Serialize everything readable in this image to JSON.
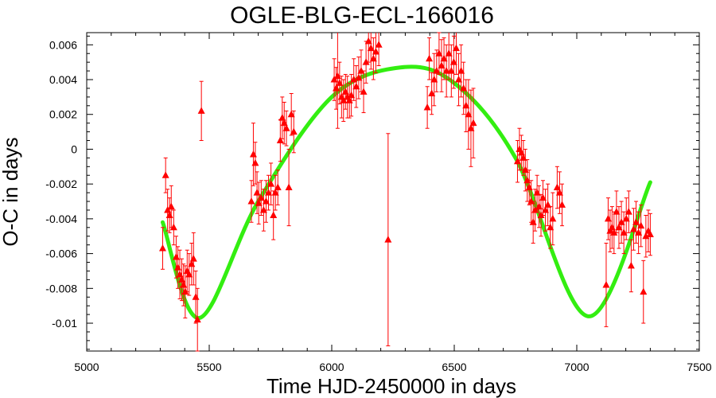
{
  "chart_data": {
    "type": "scatter",
    "title": "OGLE-BLG-ECL-166016",
    "xlabel": "Time HJD-2450000 in days",
    "ylabel": "O-C in days",
    "xlim": [
      5000,
      7500
    ],
    "ylim": [
      -0.0116,
      0.0067
    ],
    "x_ticks": [
      5000,
      5500,
      6000,
      6500,
      7000,
      7500
    ],
    "x_tick_labels": [
      "5000",
      "5500",
      "6000",
      "6500",
      "7000",
      "7500"
    ],
    "y_ticks": [
      -0.01,
      -0.008,
      -0.006,
      -0.004,
      -0.002,
      0,
      0.002,
      0.004,
      0.006
    ],
    "y_tick_labels": [
      "-0.01",
      "-0.008",
      "-0.006",
      "-0.004",
      "-0.002",
      "0",
      "0.002",
      "0.004",
      "0.006"
    ],
    "grid": false,
    "legend": "none",
    "colors": {
      "points": "#ff0000",
      "fit": "#33ee11",
      "axes": "#000000"
    },
    "series": [
      {
        "kind": "points-with-error-bars",
        "marker": "triangle",
        "points": [
          {
            "x": 5310,
            "y": -0.0057,
            "err": 0.0012
          },
          {
            "x": 5322,
            "y": -0.0015,
            "err": 0.001
          },
          {
            "x": 5330,
            "y": -0.0035,
            "err": 0.0012
          },
          {
            "x": 5338,
            "y": -0.0038,
            "err": 0.001
          },
          {
            "x": 5345,
            "y": -0.0033,
            "err": 0.0012
          },
          {
            "x": 5355,
            "y": -0.0045,
            "err": 0.001
          },
          {
            "x": 5365,
            "y": -0.0062,
            "err": 0.0012
          },
          {
            "x": 5372,
            "y": -0.0068,
            "err": 0.0012
          },
          {
            "x": 5380,
            "y": -0.0072,
            "err": 0.0014
          },
          {
            "x": 5388,
            "y": -0.0075,
            "err": 0.0012
          },
          {
            "x": 5395,
            "y": -0.0078,
            "err": 0.0012
          },
          {
            "x": 5402,
            "y": -0.0082,
            "err": 0.0015
          },
          {
            "x": 5410,
            "y": -0.007,
            "err": 0.0012
          },
          {
            "x": 5418,
            "y": -0.0072,
            "err": 0.0012
          },
          {
            "x": 5428,
            "y": -0.0066,
            "err": 0.0012
          },
          {
            "x": 5436,
            "y": -0.0063,
            "err": 0.0015
          },
          {
            "x": 5445,
            "y": -0.0085,
            "err": 0.0015
          },
          {
            "x": 5452,
            "y": -0.0098,
            "err": 0.0018
          },
          {
            "x": 5468,
            "y": 0.0022,
            "err": 0.0017
          },
          {
            "x": 5672,
            "y": -0.003,
            "err": 0.0012
          },
          {
            "x": 5680,
            "y": -0.0003,
            "err": 0.0018
          },
          {
            "x": 5688,
            "y": -0.0008,
            "err": 0.0012
          },
          {
            "x": 5695,
            "y": -0.0025,
            "err": 0.0012
          },
          {
            "x": 5702,
            "y": -0.0031,
            "err": 0.0012
          },
          {
            "x": 5712,
            "y": -0.0028,
            "err": 0.001
          },
          {
            "x": 5722,
            "y": -0.0035,
            "err": 0.0012
          },
          {
            "x": 5732,
            "y": -0.003,
            "err": 0.0012
          },
          {
            "x": 5742,
            "y": -0.0025,
            "err": 0.001
          },
          {
            "x": 5752,
            "y": -0.002,
            "err": 0.0012
          },
          {
            "x": 5762,
            "y": -0.0038,
            "err": 0.0014
          },
          {
            "x": 5770,
            "y": -0.0025,
            "err": 0.001
          },
          {
            "x": 5780,
            "y": -0.0022,
            "err": 0.001
          },
          {
            "x": 5790,
            "y": 0.0005,
            "err": 0.0012
          },
          {
            "x": 5798,
            "y": 0.0018,
            "err": 0.0012
          },
          {
            "x": 5806,
            "y": 0.0015,
            "err": 0.0012
          },
          {
            "x": 5815,
            "y": 0.0012,
            "err": 0.001
          },
          {
            "x": 5825,
            "y": -0.0022,
            "err": 0.0022
          },
          {
            "x": 5835,
            "y": 0.002,
            "err": 0.0012
          },
          {
            "x": 5845,
            "y": 0.001,
            "err": 0.0012
          },
          {
            "x": 6010,
            "y": 0.004,
            "err": 0.0012
          },
          {
            "x": 6018,
            "y": 0.0035,
            "err": 0.0012
          },
          {
            "x": 6024,
            "y": 0.0042,
            "err": 0.003
          },
          {
            "x": 6032,
            "y": 0.0038,
            "err": 0.0012
          },
          {
            "x": 6040,
            "y": 0.003,
            "err": 0.0012
          },
          {
            "x": 6048,
            "y": 0.0028,
            "err": 0.0012
          },
          {
            "x": 6056,
            "y": 0.0033,
            "err": 0.001
          },
          {
            "x": 6064,
            "y": 0.003,
            "err": 0.0012
          },
          {
            "x": 6072,
            "y": 0.0028,
            "err": 0.001
          },
          {
            "x": 6080,
            "y": 0.0031,
            "err": 0.0012
          },
          {
            "x": 6090,
            "y": 0.004,
            "err": 0.0012
          },
          {
            "x": 6100,
            "y": 0.0036,
            "err": 0.0012
          },
          {
            "x": 6110,
            "y": 0.0041,
            "err": 0.0012
          },
          {
            "x": 6120,
            "y": 0.0045,
            "err": 0.0012
          },
          {
            "x": 6130,
            "y": 0.0033,
            "err": 0.0012
          },
          {
            "x": 6140,
            "y": 0.005,
            "err": 0.0012
          },
          {
            "x": 6150,
            "y": 0.0062,
            "err": 0.0012
          },
          {
            "x": 6160,
            "y": 0.0058,
            "err": 0.0012
          },
          {
            "x": 6170,
            "y": 0.0052,
            "err": 0.0012
          },
          {
            "x": 6180,
            "y": 0.0056,
            "err": 0.0012
          },
          {
            "x": 6192,
            "y": 0.006,
            "err": 0.0012
          },
          {
            "x": 6230,
            "y": -0.0052,
            "err": 0.0061
          },
          {
            "x": 6390,
            "y": 0.0024,
            "err": 0.0012
          },
          {
            "x": 6398,
            "y": 0.0052,
            "err": 0.0012
          },
          {
            "x": 6408,
            "y": 0.0032,
            "err": 0.0012
          },
          {
            "x": 6418,
            "y": 0.004,
            "err": 0.0015
          },
          {
            "x": 6428,
            "y": 0.0045,
            "err": 0.0012
          },
          {
            "x": 6438,
            "y": 0.0055,
            "err": 0.0012
          },
          {
            "x": 6448,
            "y": 0.0048,
            "err": 0.0015
          },
          {
            "x": 6458,
            "y": 0.0052,
            "err": 0.0012
          },
          {
            "x": 6468,
            "y": 0.0045,
            "err": 0.0015
          },
          {
            "x": 6478,
            "y": 0.0055,
            "err": 0.0015
          },
          {
            "x": 6488,
            "y": 0.0045,
            "err": 0.0015
          },
          {
            "x": 6498,
            "y": 0.005,
            "err": 0.0015
          },
          {
            "x": 6508,
            "y": 0.0058,
            "err": 0.0015
          },
          {
            "x": 6518,
            "y": 0.004,
            "err": 0.0015
          },
          {
            "x": 6528,
            "y": 0.0045,
            "err": 0.0015
          },
          {
            "x": 6538,
            "y": 0.0035,
            "err": 0.0015
          },
          {
            "x": 6548,
            "y": 0.0025,
            "err": 0.0015
          },
          {
            "x": 6558,
            "y": 0.002,
            "err": 0.002
          },
          {
            "x": 6568,
            "y": 0.0012,
            "err": 0.0022
          },
          {
            "x": 6578,
            "y": 0.0015,
            "err": 0.002
          },
          {
            "x": 6758,
            "y": -0.0007,
            "err": 0.0012
          },
          {
            "x": 6766,
            "y": 0.0,
            "err": 0.0012
          },
          {
            "x": 6774,
            "y": -0.0002,
            "err": 0.001
          },
          {
            "x": 6782,
            "y": -0.0005,
            "err": 0.001
          },
          {
            "x": 6790,
            "y": -0.0012,
            "err": 0.0012
          },
          {
            "x": 6798,
            "y": -0.0018,
            "err": 0.0012
          },
          {
            "x": 6806,
            "y": -0.0022,
            "err": 0.001
          },
          {
            "x": 6814,
            "y": -0.003,
            "err": 0.0012
          },
          {
            "x": 6822,
            "y": -0.0042,
            "err": 0.0012
          },
          {
            "x": 6830,
            "y": -0.0035,
            "err": 0.0012
          },
          {
            "x": 6838,
            "y": -0.0025,
            "err": 0.001
          },
          {
            "x": 6846,
            "y": -0.0033,
            "err": 0.0012
          },
          {
            "x": 6854,
            "y": -0.0038,
            "err": 0.0012
          },
          {
            "x": 6862,
            "y": -0.0028,
            "err": 0.001
          },
          {
            "x": 6872,
            "y": -0.0035,
            "err": 0.0012
          },
          {
            "x": 6882,
            "y": -0.0032,
            "err": 0.0012
          },
          {
            "x": 6892,
            "y": -0.0045,
            "err": 0.0012
          },
          {
            "x": 6902,
            "y": -0.004,
            "err": 0.0015
          },
          {
            "x": 6920,
            "y": -0.0022,
            "err": 0.0012
          },
          {
            "x": 6930,
            "y": -0.0025,
            "err": 0.0012
          },
          {
            "x": 6940,
            "y": -0.0032,
            "err": 0.0012
          },
          {
            "x": 7120,
            "y": -0.0078,
            "err": 0.0024
          },
          {
            "x": 7128,
            "y": -0.004,
            "err": 0.0012
          },
          {
            "x": 7136,
            "y": -0.0047,
            "err": 0.0012
          },
          {
            "x": 7144,
            "y": -0.0045,
            "err": 0.0012
          },
          {
            "x": 7152,
            "y": -0.0048,
            "err": 0.0012
          },
          {
            "x": 7162,
            "y": -0.0036,
            "err": 0.0012
          },
          {
            "x": 7172,
            "y": -0.0045,
            "err": 0.0012
          },
          {
            "x": 7182,
            "y": -0.0042,
            "err": 0.0012
          },
          {
            "x": 7192,
            "y": -0.0048,
            "err": 0.0012
          },
          {
            "x": 7202,
            "y": -0.004,
            "err": 0.0012
          },
          {
            "x": 7212,
            "y": -0.0036,
            "err": 0.0012
          },
          {
            "x": 7222,
            "y": -0.0067,
            "err": 0.0015
          },
          {
            "x": 7232,
            "y": -0.0046,
            "err": 0.0012
          },
          {
            "x": 7242,
            "y": -0.0042,
            "err": 0.0012
          },
          {
            "x": 7252,
            "y": -0.0048,
            "err": 0.0012
          },
          {
            "x": 7262,
            "y": -0.0044,
            "err": 0.0012
          },
          {
            "x": 7272,
            "y": -0.0082,
            "err": 0.0018
          },
          {
            "x": 7282,
            "y": -0.005,
            "err": 0.0012
          },
          {
            "x": 7292,
            "y": -0.0047,
            "err": 0.0012
          },
          {
            "x": 7300,
            "y": -0.0049,
            "err": 0.0012
          }
        ]
      },
      {
        "kind": "fit-curve",
        "function": "sinusoid",
        "x_range": [
          5310,
          7300
        ],
        "points": [
          {
            "x": 5310,
            "y": -0.0042
          },
          {
            "x": 5460,
            "y": -0.0097
          },
          {
            "x": 5700,
            "y": -0.003
          },
          {
            "x": 6000,
            "y": 0.003
          },
          {
            "x": 6280,
            "y": 0.0047
          },
          {
            "x": 6500,
            "y": 0.0038
          },
          {
            "x": 6750,
            "y": -0.0005
          },
          {
            "x": 7045,
            "y": -0.0096
          },
          {
            "x": 7300,
            "y": -0.0019
          }
        ]
      }
    ]
  }
}
